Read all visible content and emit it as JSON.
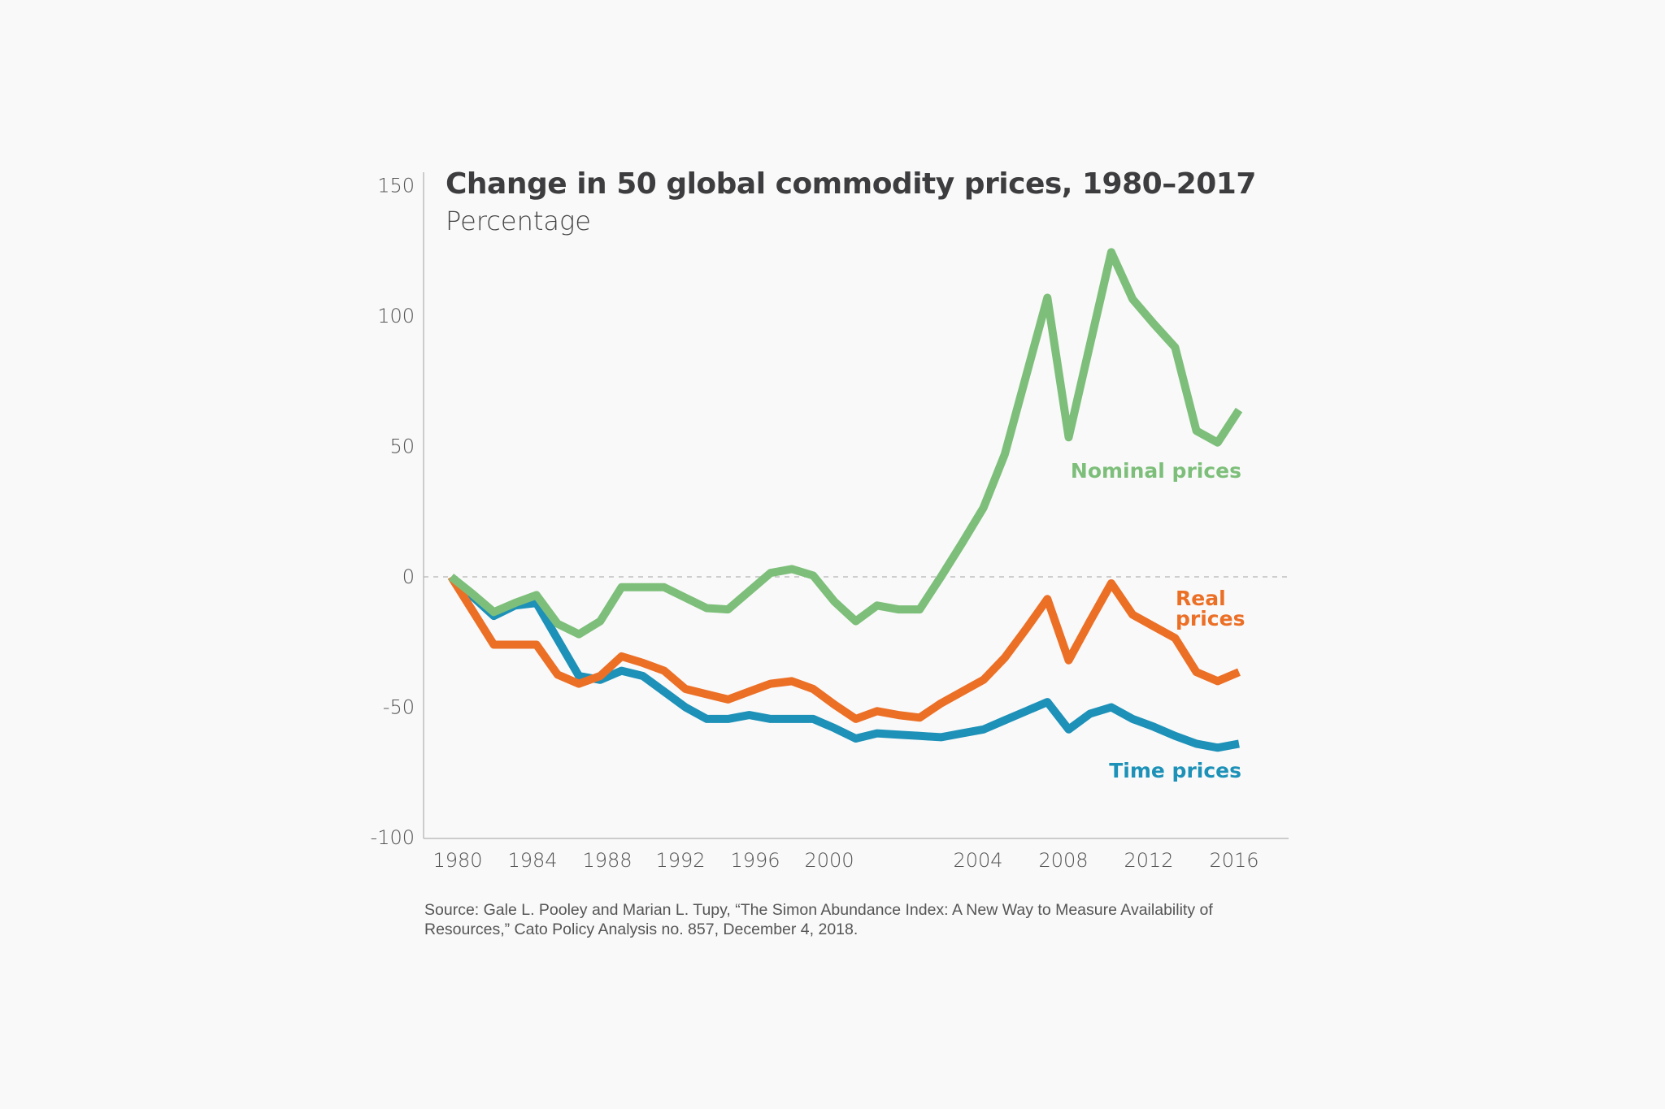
{
  "chart_data": {
    "type": "line",
    "title": "Change in 50 global commodity prices, 1980–2017",
    "subtitle": "Percentage",
    "xlabel": "",
    "ylabel": "Percentage",
    "xlim": [
      1980,
      2017
    ],
    "ylim": [
      -100,
      150
    ],
    "y_ticks": [
      150,
      100,
      50,
      0,
      -50,
      -100
    ],
    "x_ticks": [
      1980,
      1984,
      1988,
      1992,
      1996,
      2000,
      2004,
      2008,
      2012,
      2016
    ],
    "reference_line": {
      "y": 0,
      "style": "dashed"
    },
    "grid": false,
    "legend": "direct-labels-right",
    "x": [
      1980,
      1981,
      1982,
      1983,
      1984,
      1985,
      1986,
      1987,
      1988,
      1989,
      1990,
      1991,
      1992,
      1993,
      1994,
      1995,
      1996,
      1997,
      1998,
      1999,
      2000,
      2001,
      2002,
      2003,
      2004,
      2005,
      2006,
      2007,
      2008,
      2009,
      2010,
      2011,
      2012,
      2013,
      2014,
      2015,
      2016,
      2017
    ],
    "series": [
      {
        "name": "Nominal prices",
        "color": "#7dbf7a",
        "values": [
          0,
          -6.5,
          -13.5,
          -10,
          -7,
          -18,
          -22,
          -17,
          -4,
          -4,
          -4,
          -8,
          -12,
          -12.5,
          -5.5,
          1.5,
          3,
          0.5,
          -9.5,
          -17,
          -11,
          -12.5,
          -12.5,
          0,
          13,
          26.5,
          47,
          77,
          107,
          53.5,
          89,
          124.5,
          106.5,
          97,
          88,
          56,
          51.5,
          64
        ]
      },
      {
        "name": "Real prices",
        "color": "#ec6f26",
        "values": [
          0,
          -13,
          -26,
          -26,
          -26,
          -37.5,
          -41,
          -38,
          -30.5,
          -33,
          -36,
          -43,
          -45,
          -47,
          -44,
          -41,
          -40,
          -43,
          -49,
          -54.5,
          -51.5,
          -53,
          -54,
          -48.5,
          -44,
          -39.5,
          -31,
          -20,
          -8.5,
          -32,
          -17,
          -2.5,
          -14.5,
          -19,
          -23.5,
          -36.5,
          -40,
          -36.5
        ]
      },
      {
        "name": "Time prices",
        "color": "#1d91b8",
        "values": [
          0,
          -7.5,
          -15,
          -11,
          -10,
          -24,
          -38,
          -39.5,
          -36,
          -38,
          -44,
          -50,
          -54.5,
          -54.5,
          -53,
          -54.5,
          -54.5,
          -54.5,
          -58,
          -62,
          -60,
          -60.5,
          -61,
          -61.5,
          -60,
          -58.5,
          -55,
          -51.5,
          -48,
          -58.5,
          -52.5,
          -50,
          -54.5,
          -57.5,
          -61,
          -64,
          -65.5,
          -64
        ]
      }
    ],
    "labels": {
      "nominal": "Nominal prices",
      "real_line1": "Real",
      "real_line2": "prices",
      "time": "Time prices"
    }
  },
  "source": "Source: Gale L. Pooley and Marian L. Tupy, “The Simon Abundance Index: A New Way to Measure Availability of Resources,” Cato Policy Analysis no. 857, December 4, 2018."
}
